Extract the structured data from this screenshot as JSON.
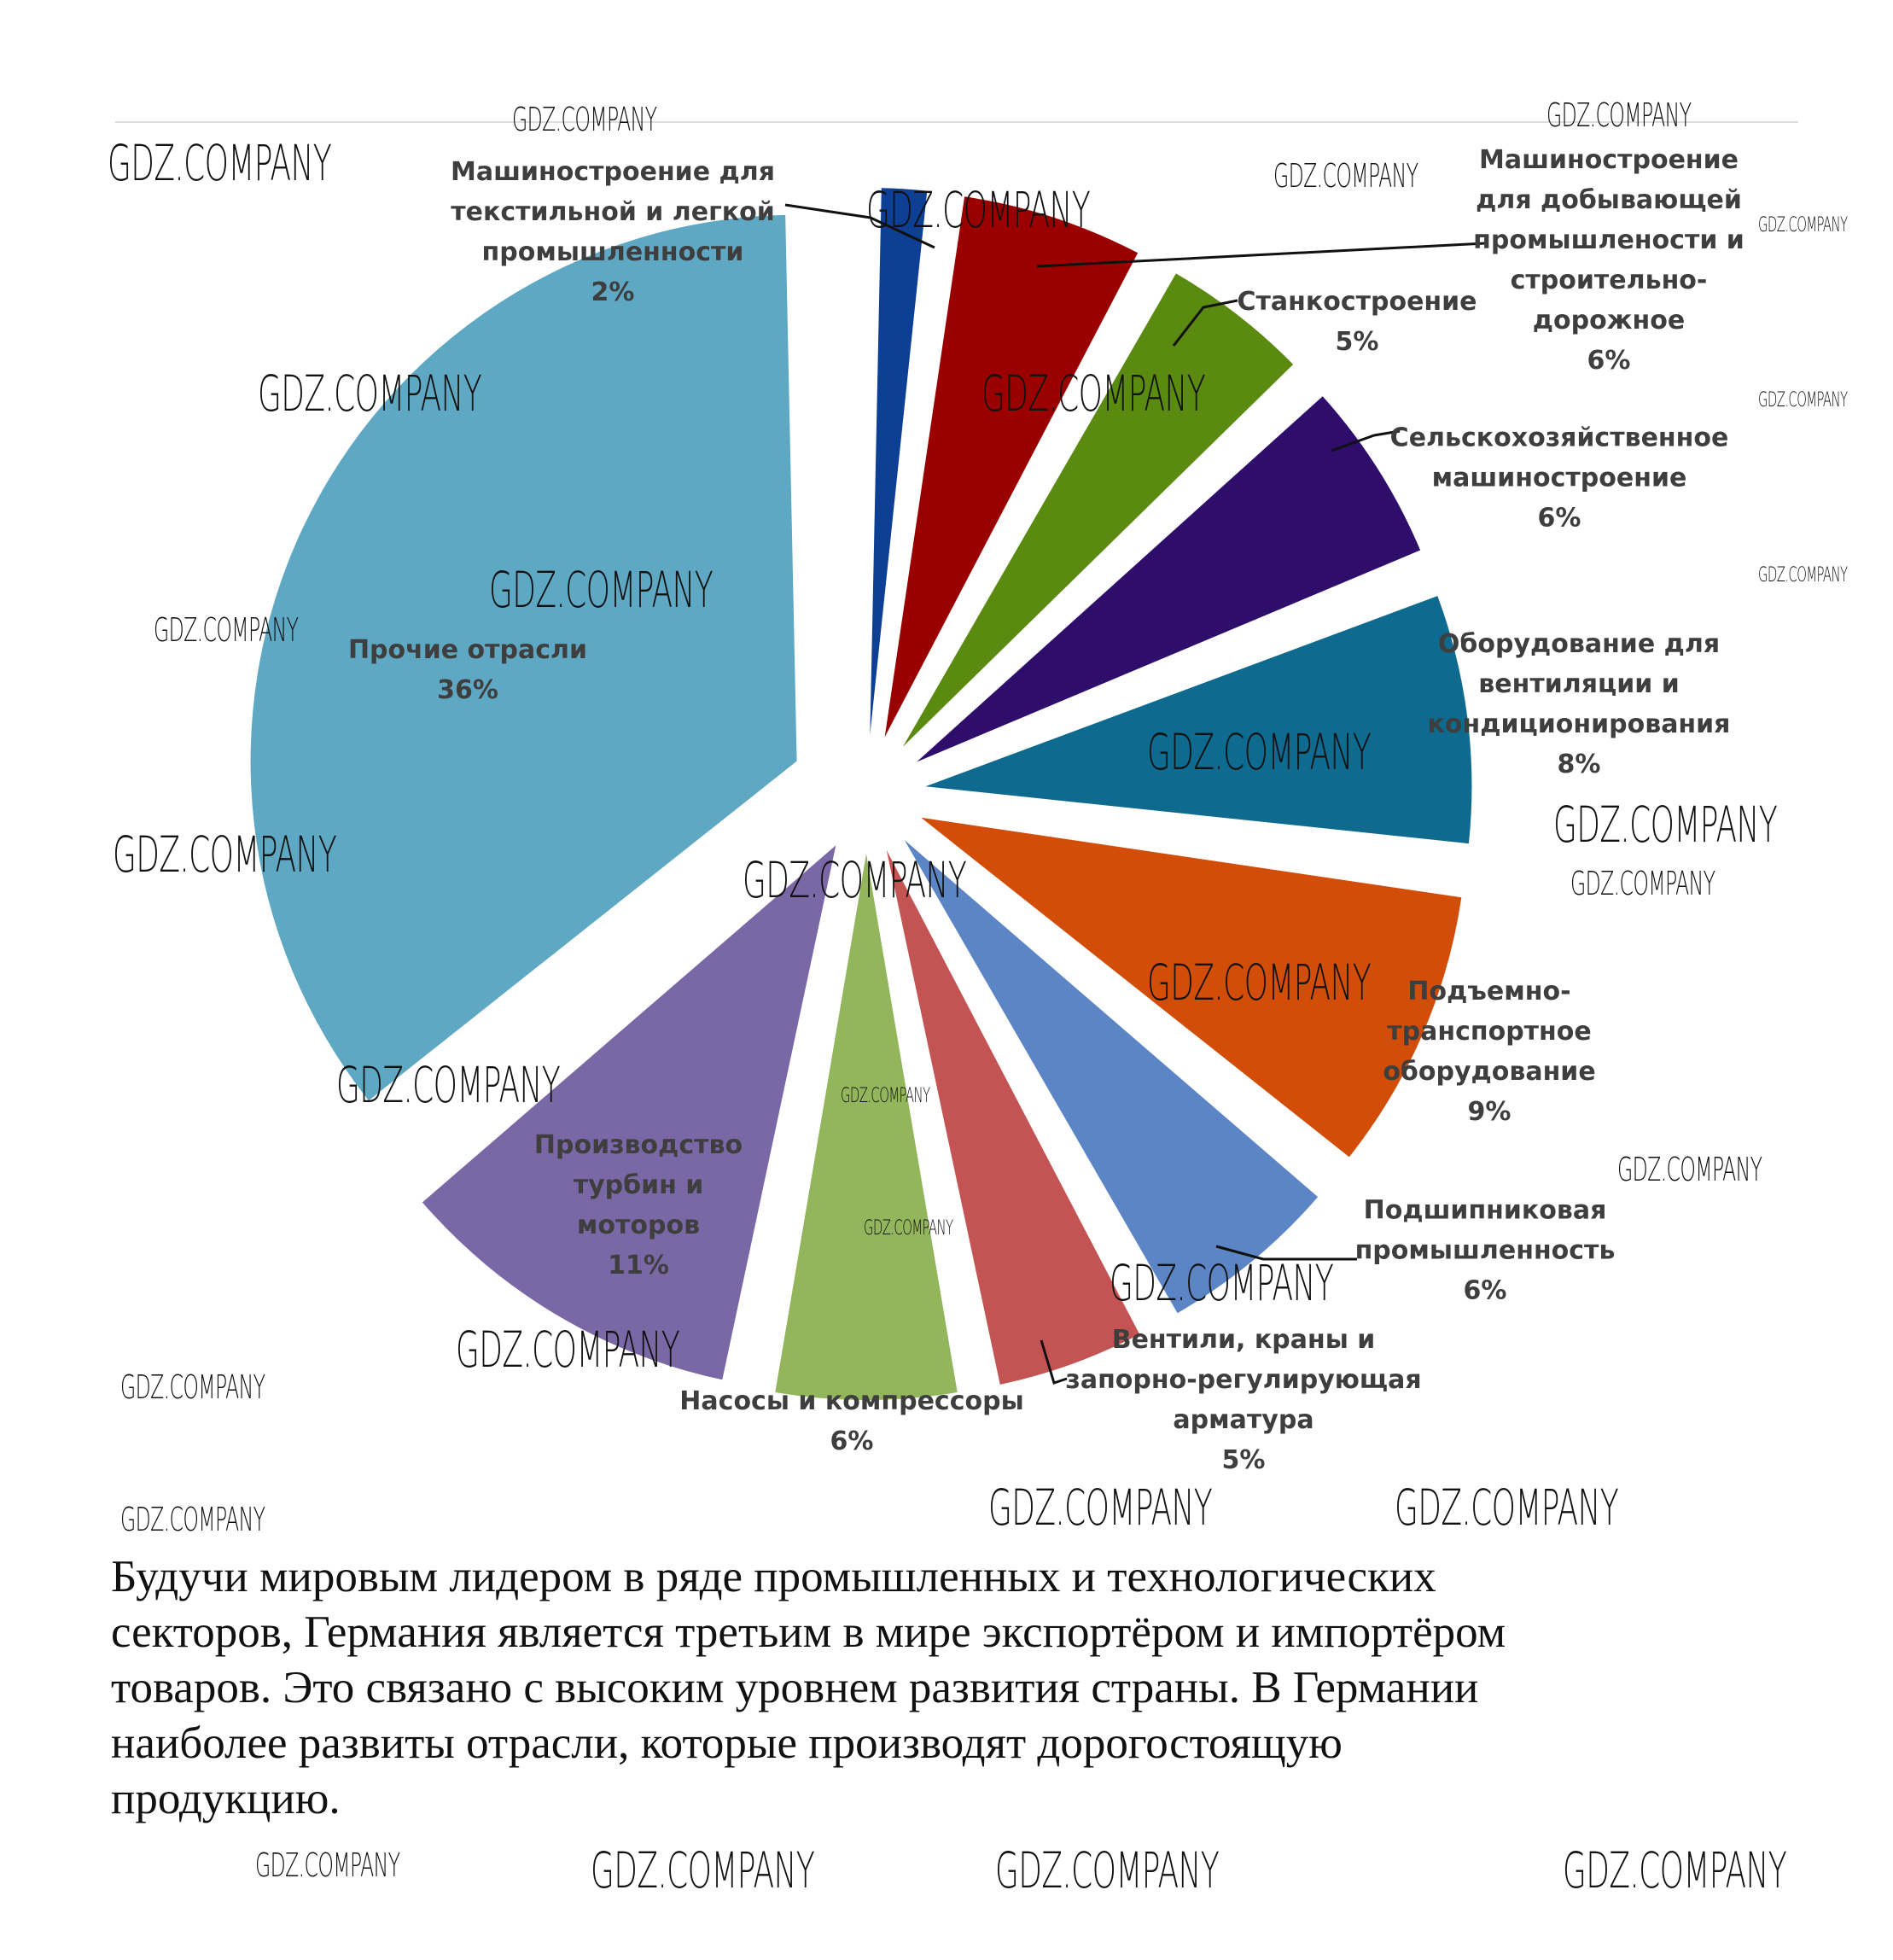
{
  "chart_data": {
    "type": "pie",
    "exploded": true,
    "start": "top",
    "direction": "clockwise",
    "slices": [
      {
        "label": "Машиностроение для текстильной и легкой промышленности",
        "lines": [
          "Машиностроение для",
          "текстильной и легкой",
          "промышленности"
        ],
        "value": 2,
        "pct_label": "2%",
        "color": "#0d3f94"
      },
      {
        "label": "Машиностроение для добывающей промышлености и строительно-дорожное",
        "lines": [
          "Машиностроение",
          "для добывающей",
          "промышлености и",
          "строительно-",
          "дорожное"
        ],
        "value": 6,
        "pct_label": "6%",
        "color": "#9b0000"
      },
      {
        "label": "Станкостроение",
        "lines": [
          "Станкостроение"
        ],
        "value": 5,
        "pct_label": "5%",
        "color": "#5a8a10"
      },
      {
        "label": "Сельскохозяйственное машиностроение",
        "lines": [
          "Сельскохозяйственное",
          "машиностроение"
        ],
        "value": 6,
        "pct_label": "6%",
        "color": "#2e0d6b"
      },
      {
        "label": "Оборудование для вентиляции и кондиционирования",
        "lines": [
          "Оборудование для",
          "вентиляции и",
          "кондиционирования"
        ],
        "value": 8,
        "pct_label": "8%",
        "color": "#0e6a8e"
      },
      {
        "label": "Подъемно-транспортное оборудование",
        "lines": [
          "Подъемно-",
          "транспортное",
          "оборудование"
        ],
        "value": 9,
        "pct_label": "9%",
        "color": "#d24e08"
      },
      {
        "label": "Подшипниковая промышленность",
        "lines": [
          "Подшипниковая",
          "промышленность"
        ],
        "value": 6,
        "pct_label": "6%",
        "color": "#5b85c4"
      },
      {
        "label": "Вентили, краны и запорно-регулирующая арматура",
        "lines": [
          "Вентили, краны и",
          "запорно-регулирующая",
          "арматура"
        ],
        "value": 5,
        "pct_label": "5%",
        "color": "#c45454"
      },
      {
        "label": "Насосы и компрессоры",
        "lines": [
          "Насосы и компрессоры"
        ],
        "value": 6,
        "pct_label": "6%",
        "color": "#93b55c"
      },
      {
        "label": "Производство турбин и моторов",
        "lines": [
          "Производство",
          "турбин и",
          "моторов"
        ],
        "value": 11,
        "pct_label": "11%",
        "color": "#7a68a6"
      },
      {
        "label": "Прочие отрасли",
        "lines": [
          "Прочие отрасли"
        ],
        "value": 36,
        "pct_label": "36%",
        "color": "#5ea8c4"
      }
    ]
  },
  "watermark": "GDZ.COMPANY",
  "body_text": {
    "lines": [
      "Будучи мировым лидером в ряде промышленных и технологических",
      "секторов, Германия является третьим в мире экспортёром и импортёром",
      "товаров. Это связано с высоким уровнем развития страны. В Германии",
      "наиболее развиты отрасли, которые производят дорогостоящую",
      "продукцию."
    ]
  }
}
